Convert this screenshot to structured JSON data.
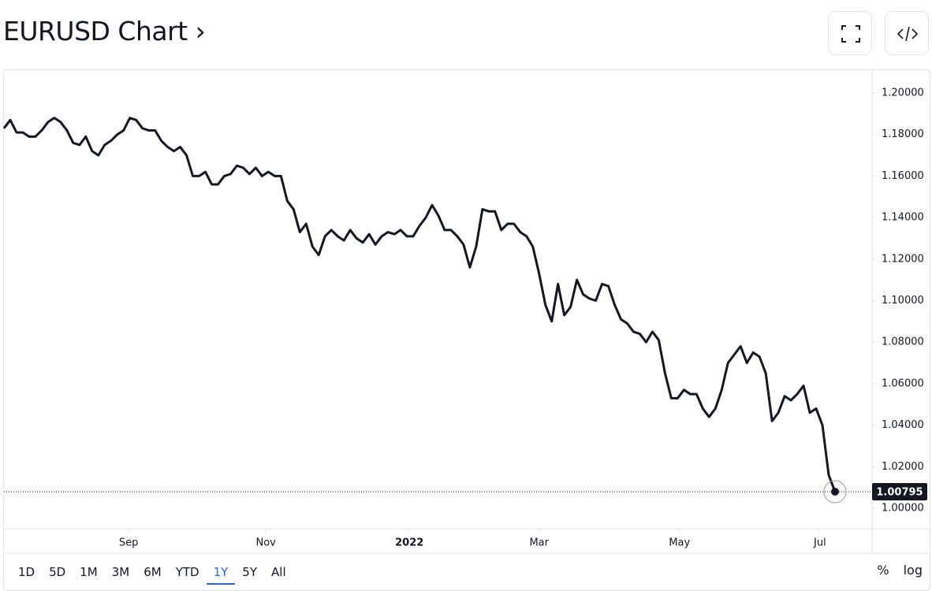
{
  "header": {
    "title": "EURUSD Chart ›"
  },
  "chart_data": {
    "type": "line",
    "color": "#131722",
    "values": [
      1.183,
      1.187,
      1.181,
      1.181,
      1.179,
      1.179,
      1.182,
      1.186,
      1.188,
      1.186,
      1.182,
      1.176,
      1.175,
      1.179,
      1.172,
      1.17,
      1.175,
      1.177,
      1.18,
      1.182,
      1.188,
      1.187,
      1.183,
      1.182,
      1.182,
      1.177,
      1.174,
      1.172,
      1.174,
      1.17,
      1.16,
      1.16,
      1.162,
      1.156,
      1.156,
      1.16,
      1.161,
      1.165,
      1.164,
      1.161,
      1.164,
      1.16,
      1.162,
      1.16,
      1.16,
      1.148,
      1.144,
      1.133,
      1.137,
      1.126,
      1.122,
      1.131,
      1.134,
      1.131,
      1.129,
      1.134,
      1.13,
      1.128,
      1.132,
      1.127,
      1.131,
      1.133,
      1.132,
      1.134,
      1.131,
      1.131,
      1.136,
      1.14,
      1.146,
      1.141,
      1.134,
      1.134,
      1.131,
      1.127,
      1.116,
      1.126,
      1.144,
      1.143,
      1.143,
      1.134,
      1.137,
      1.137,
      1.133,
      1.131,
      1.126,
      1.113,
      1.098,
      1.09,
      1.108,
      1.093,
      1.097,
      1.11,
      1.103,
      1.101,
      1.1,
      1.108,
      1.107,
      1.098,
      1.091,
      1.089,
      1.085,
      1.084,
      1.08,
      1.085,
      1.081,
      1.065,
      1.053,
      1.053,
      1.057,
      1.055,
      1.055,
      1.048,
      1.044,
      1.048,
      1.057,
      1.07,
      1.074,
      1.078,
      1.07,
      1.075,
      1.073,
      1.065,
      1.042,
      1.046,
      1.054,
      1.052,
      1.055,
      1.059,
      1.046,
      1.048,
      1.04,
      1.016,
      1.00795
    ],
    "last_label": "1.00795",
    "xlim": [
      0,
      132
    ],
    "xticks": [
      {
        "value": 19.8,
        "label": "Sep"
      },
      {
        "value": 41.6,
        "label": "Nov"
      },
      {
        "value": 64.4,
        "label": "2022"
      },
      {
        "value": 85,
        "label": "Mar"
      },
      {
        "value": 107.3,
        "label": "May"
      },
      {
        "value": 129.6,
        "label": "Jul"
      }
    ],
    "ylim": [
      0.9905,
      1.2114
    ],
    "yticks": [
      {
        "value": 1.0,
        "label": "1.00000"
      },
      {
        "value": 1.02,
        "label": "1.02000"
      },
      {
        "value": 1.04,
        "label": "1.04000"
      },
      {
        "value": 1.06,
        "label": "1.06000"
      },
      {
        "value": 1.08,
        "label": "1.08000"
      },
      {
        "value": 1.1,
        "label": "1.10000"
      },
      {
        "value": 1.12,
        "label": "1.12000"
      },
      {
        "value": 1.14,
        "label": "1.14000"
      },
      {
        "value": 1.16,
        "label": "1.16000"
      },
      {
        "value": 1.18,
        "label": "1.18000"
      },
      {
        "value": 1.2,
        "label": "1.20000"
      }
    ]
  },
  "toolbar": {
    "ranges": [
      "1D",
      "5D",
      "1M",
      "3M",
      "6M",
      "YTD",
      "1Y",
      "5Y",
      "All"
    ],
    "selected": "1Y",
    "options": [
      "%",
      "log"
    ]
  }
}
